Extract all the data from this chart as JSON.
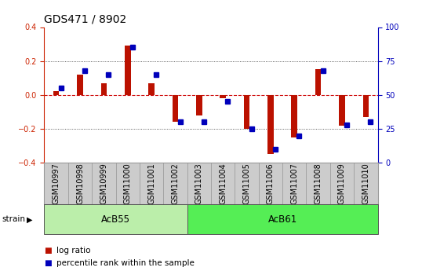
{
  "title": "GDS471 / 8902",
  "samples": [
    "GSM10997",
    "GSM10998",
    "GSM10999",
    "GSM11000",
    "GSM11001",
    "GSM11002",
    "GSM11003",
    "GSM11004",
    "GSM11005",
    "GSM11006",
    "GSM11007",
    "GSM11008",
    "GSM11009",
    "GSM11010"
  ],
  "log_ratio": [
    0.02,
    0.12,
    0.07,
    0.29,
    0.07,
    -0.16,
    -0.12,
    -0.02,
    -0.2,
    -0.35,
    -0.25,
    0.15,
    -0.18,
    -0.13
  ],
  "percentile": [
    55,
    68,
    65,
    85,
    65,
    30,
    30,
    45,
    25,
    10,
    20,
    68,
    28,
    30
  ],
  "strain_groups": [
    {
      "label": "AcB55",
      "start": 0,
      "end": 5,
      "color": "#bbeeaa"
    },
    {
      "label": "AcB61",
      "start": 6,
      "end": 13,
      "color": "#55ee55"
    }
  ],
  "ylim": [
    -0.4,
    0.4
  ],
  "yticks_left": [
    -0.4,
    -0.2,
    0.0,
    0.2,
    0.4
  ],
  "yticks_right": [
    0,
    25,
    50,
    75,
    100
  ],
  "bar_color_red": "#bb1100",
  "bar_color_blue": "#0000bb",
  "zero_line_color": "#cc0000",
  "grid_color": "#333333",
  "title_fontsize": 10,
  "tick_fontsize": 7,
  "legend_fontsize": 7.5
}
